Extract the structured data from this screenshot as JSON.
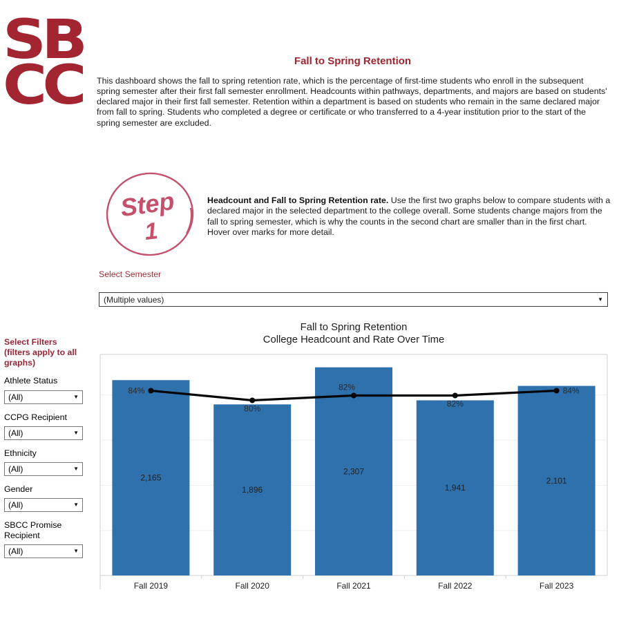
{
  "logo": {
    "line1": "SB",
    "line2": "CC"
  },
  "header": {
    "title": "Fall to Spring Retention",
    "description": "This dashboard shows the fall to spring retention rate, which is the percentage of first-time students who enroll in the subsequent spring semester after their first fall semester enrollment. Headcounts within pathways, departments, and majors are based on students' declared major in their first fall semester. Retention within a department is based on students who remain in the same declared major from fall to spring. Students who completed a degree or certificate or who transferred to a 4-year institution prior to the start of the spring semester are excluded."
  },
  "step": {
    "circle_word": "Step",
    "circle_number": "1",
    "lead": "Headcount and Fall to Spring Retention rate.",
    "body": " Use the first two graphs below to compare students with a declared major in the selected department to the college overall. Some students change majors from the fall to spring semester, which is why the counts in the second chart are smaller than in the first chart. Hover over marks for more detail.",
    "accent_color": "#c5506b"
  },
  "semester_filter": {
    "label": "Select Semester",
    "value": "(Multiple values)"
  },
  "sidebar": {
    "heading": "Select Filters (filters apply to all graphs)",
    "filters": [
      {
        "label": "Athlete Status",
        "value": "(All)"
      },
      {
        "label": "CCPG Recipient",
        "value": "(All)"
      },
      {
        "label": "Ethnicity",
        "value": "(All)"
      },
      {
        "label": "Gender",
        "value": "(All)"
      },
      {
        "label": "SBCC Promise Recipient",
        "value": "(All)"
      }
    ]
  },
  "chart_data": {
    "type": "bar",
    "title": "Fall to Spring Retention",
    "subtitle": "College Headcount and Rate Over Time",
    "categories": [
      "Fall 2019",
      "Fall 2020",
      "Fall 2021",
      "Fall 2022",
      "Fall 2023"
    ],
    "series": [
      {
        "name": "College Headcount",
        "type": "bar",
        "values": [
          2165,
          1896,
          2307,
          1941,
          2101
        ],
        "labels": [
          "2,165",
          "1,896",
          "2,307",
          "1,941",
          "2,101"
        ],
        "color": "#2f71ad"
      },
      {
        "name": "Retention Rate",
        "type": "line",
        "values": [
          84,
          80,
          82,
          82,
          84
        ],
        "labels": [
          "84%",
          "80%",
          "82%",
          "82%",
          "84%"
        ],
        "label_positions": [
          "left",
          "below",
          "above",
          "below",
          "right"
        ],
        "color": "#050505"
      }
    ],
    "ylim": [
      0,
      2450
    ],
    "gridline_step": 500,
    "grid": true,
    "legend_position": "none",
    "xlabel": "",
    "ylabel": ""
  },
  "colors": {
    "brand_red": "#a32532",
    "bar_blue": "#2f71ad",
    "border_gray": "#cfcfcf"
  }
}
